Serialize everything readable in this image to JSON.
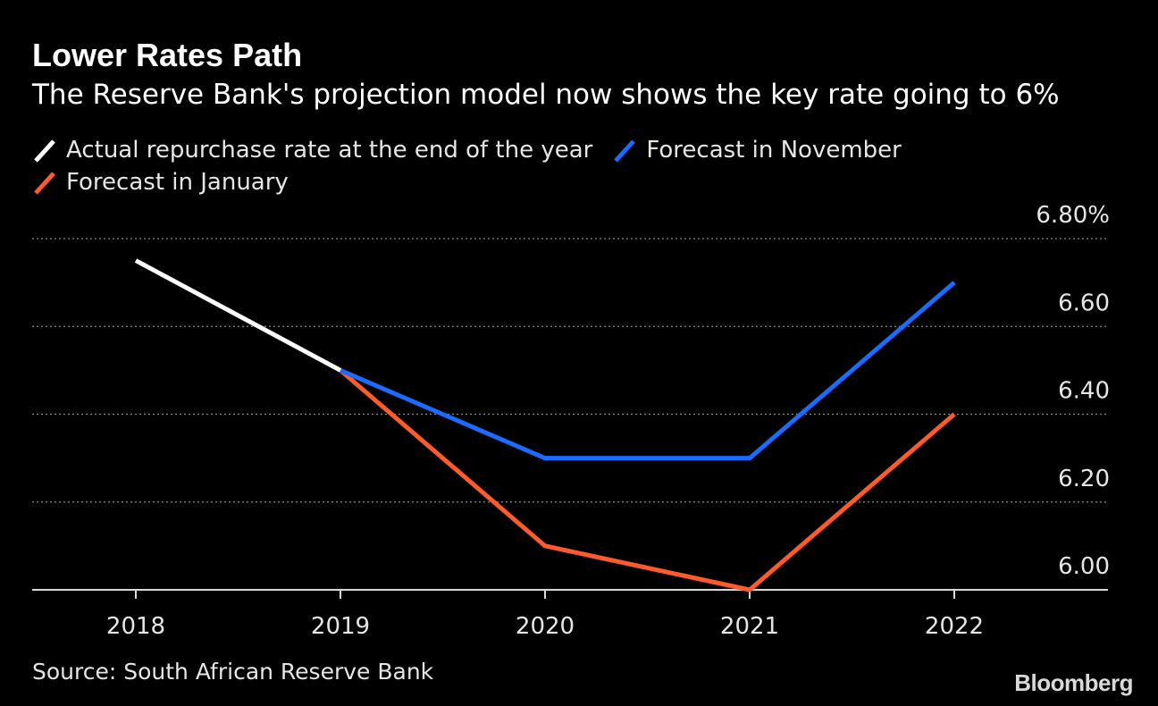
{
  "header": {
    "title": "Lower Rates Path",
    "subtitle": "The Reserve Bank's projection model now shows the key rate going to 6%"
  },
  "legend": {
    "items": [
      {
        "label": "Actual repurchase rate at the end of the year",
        "color": "#ffffff"
      },
      {
        "label": "Forecast in November",
        "color": "#1a6bff"
      },
      {
        "label": "Forecast in January",
        "color": "#ff5a2b"
      }
    ]
  },
  "chart_data": {
    "type": "line",
    "title": "Lower Rates Path",
    "subtitle": "The Reserve Bank's projection model now shows the key rate going to 6%",
    "categories": [
      "2018",
      "2019",
      "2020",
      "2021",
      "2022"
    ],
    "xlabel": "",
    "ylabel": "",
    "ylim": [
      6.0,
      6.8
    ],
    "yticks": [
      6.0,
      6.2,
      6.4,
      6.6,
      6.8
    ],
    "ytick_labels": [
      "6.00",
      "6.20",
      "6.40",
      "6.60",
      "6.80%"
    ],
    "y_axis_side": "right",
    "grid": "horizontal dotted",
    "series": [
      {
        "name": "Actual repurchase rate at the end of the year",
        "color": "#ffffff",
        "x": [
          "2018",
          "2019"
        ],
        "values": [
          6.75,
          6.5
        ]
      },
      {
        "name": "Forecast in November",
        "color": "#1a6bff",
        "x": [
          "2019",
          "2020",
          "2021",
          "2022"
        ],
        "values": [
          6.5,
          6.3,
          6.3,
          6.7
        ]
      },
      {
        "name": "Forecast in January",
        "color": "#ff5a2b",
        "x": [
          "2019",
          "2020",
          "2021",
          "2022"
        ],
        "values": [
          6.5,
          6.1,
          6.0,
          6.4
        ]
      }
    ]
  },
  "footer": {
    "source": "Source: South African Reserve Bank",
    "brand": "Bloomberg"
  }
}
